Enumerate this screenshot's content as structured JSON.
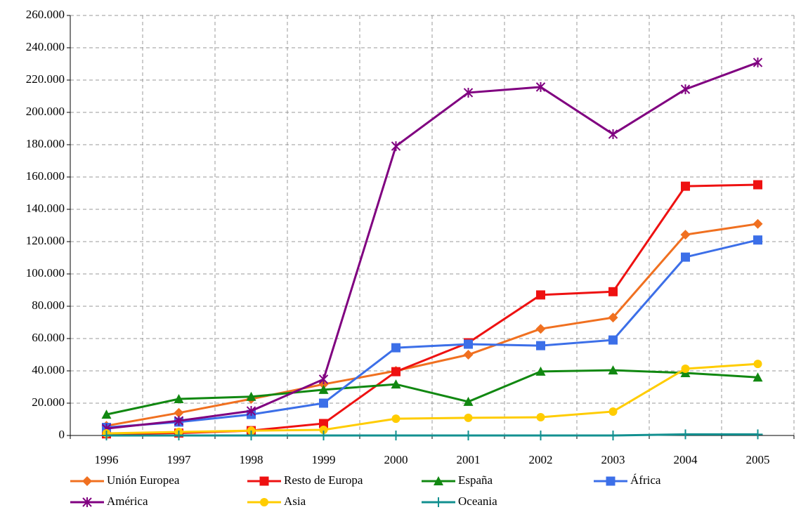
{
  "chart_data": {
    "type": "line",
    "categories": [
      "1996",
      "1997",
      "1998",
      "1999",
      "2000",
      "2001",
      "2002",
      "2003",
      "2004",
      "2005"
    ],
    "ylim": [
      0,
      260000
    ],
    "yticks": [
      0,
      {
        "value": 20000,
        "label": "20.000"
      },
      {
        "value": 40000,
        "label": "40.000"
      },
      {
        "value": 60000,
        "label": "60.000"
      },
      {
        "value": 80000,
        "label": "80.000"
      },
      {
        "value": 100000,
        "label": "100.000"
      },
      {
        "value": 120000,
        "label": "120.000"
      },
      {
        "value": 140000,
        "label": "140.000"
      },
      {
        "value": 160000,
        "label": "160.000"
      },
      {
        "value": 180000,
        "label": "180.000"
      },
      {
        "value": 200000,
        "label": "200.000"
      },
      {
        "value": 220000,
        "label": "220.000"
      },
      {
        "value": 240000,
        "label": "240.000"
      },
      {
        "value": 260000,
        "label": "260.000"
      }
    ],
    "grid": true,
    "legend": "bottom",
    "series": [
      {
        "name": "Unión Europea",
        "color": "#f07020",
        "marker": "diamond",
        "values": [
          6000,
          14000,
          22600,
          31700,
          40000,
          50000,
          66000,
          73000,
          124300,
          131000
        ]
      },
      {
        "name": "Resto de Europa",
        "color": "#ee1111",
        "marker": "square",
        "values": [
          1000,
          1500,
          3000,
          7400,
          39500,
          57400,
          87000,
          89000,
          154300,
          155200
        ]
      },
      {
        "name": "España",
        "color": "#118811",
        "marker": "triangle",
        "values": [
          13000,
          22600,
          24000,
          28300,
          31700,
          20900,
          39600,
          40400,
          38700,
          36000
        ]
      },
      {
        "name": "África",
        "color": "#3c6fe8",
        "marker": "square",
        "values": [
          5000,
          8300,
          13000,
          20000,
          54300,
          56500,
          55600,
          59100,
          110400,
          121000
        ]
      },
      {
        "name": "América",
        "color": "#800080",
        "marker": "asterisk",
        "values": [
          4300,
          9100,
          15200,
          34800,
          179100,
          212200,
          215700,
          186500,
          214300,
          230900
        ]
      },
      {
        "name": "Asia",
        "color": "#ffcc00",
        "marker": "circle",
        "values": [
          1300,
          2200,
          3000,
          3500,
          10400,
          10900,
          11300,
          14800,
          41300,
          44300
        ]
      },
      {
        "name": "Oceania",
        "color": "#129090",
        "marker": "plus",
        "values": [
          0,
          0,
          0,
          0,
          0,
          0,
          0,
          0,
          700,
          700
        ]
      }
    ]
  }
}
